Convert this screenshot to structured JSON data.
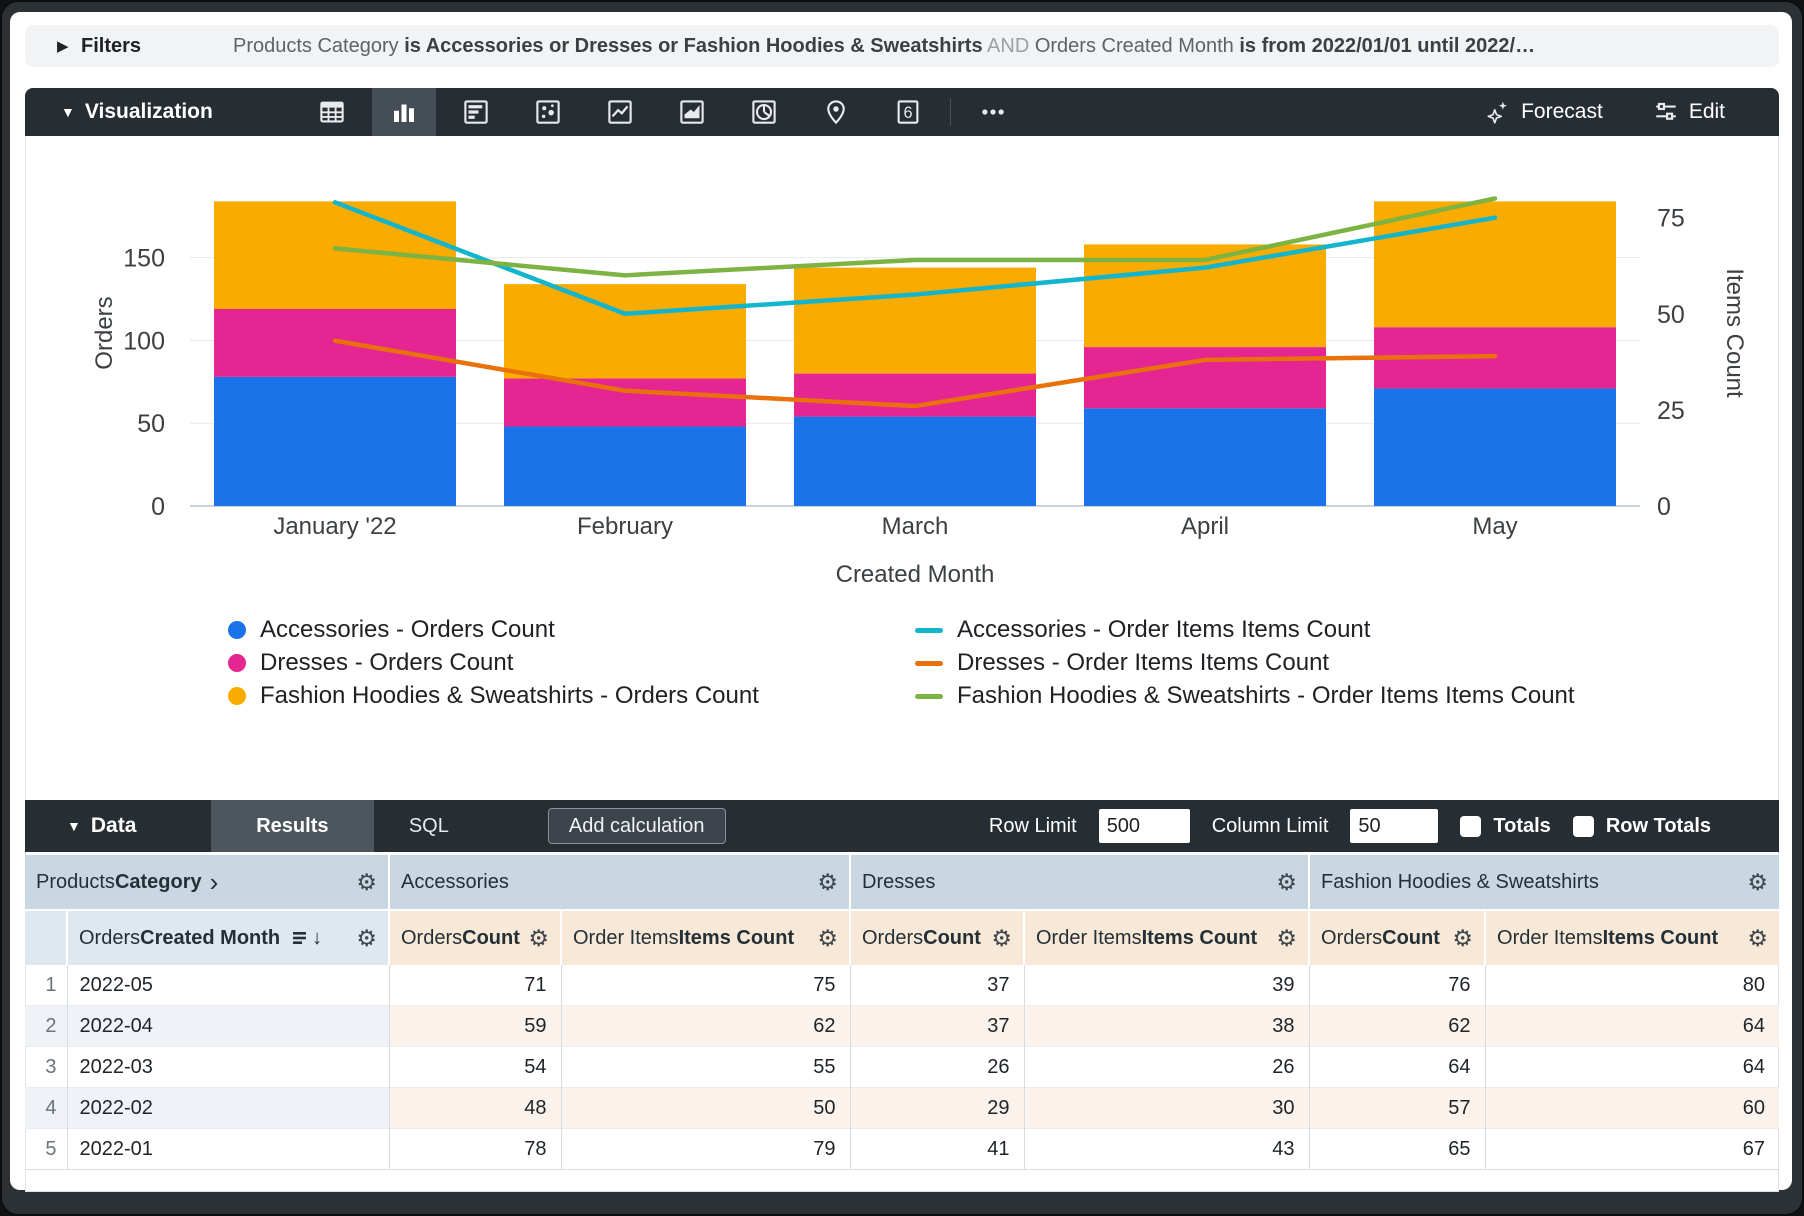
{
  "filters": {
    "label": "Filters",
    "summary": [
      {
        "text": "Products Category "
      },
      {
        "text": "is Accessories or Dresses or Fashion Hoodies & Sweatshirts"
      },
      {
        "text": " AND "
      },
      {
        "text": "Orders Created Month "
      },
      {
        "text": "is from 2022/01/01 until 2022/…"
      }
    ]
  },
  "viz": {
    "title": "Visualization",
    "icons": [
      "table",
      "column",
      "bar",
      "scatter",
      "line",
      "area",
      "pie",
      "map",
      "single-value",
      "more"
    ],
    "selected_icon": "column",
    "single_value_glyph": "6",
    "forecast_label": "Forecast",
    "edit_label": "Edit"
  },
  "chart_data": {
    "type": "combo",
    "stacked_bars": true,
    "categories": [
      "January '22",
      "February",
      "March",
      "April",
      "May"
    ],
    "xlabel": "Created Month",
    "bar_series": [
      {
        "name": "Accessories - Orders Count",
        "axis": "left",
        "color": "#1A73E8",
        "values": [
          78,
          48,
          54,
          59,
          71
        ]
      },
      {
        "name": "Dresses - Orders Count",
        "axis": "left",
        "color": "#E52592",
        "values": [
          41,
          29,
          26,
          37,
          37
        ]
      },
      {
        "name": "Fashion Hoodies & Sweatshirts - Orders Count",
        "axis": "left",
        "color": "#F9AB00",
        "values": [
          65,
          57,
          64,
          62,
          76
        ]
      }
    ],
    "line_series": [
      {
        "name": "Accessories - Order Items Items Count",
        "axis": "right",
        "color": "#12B5CB",
        "values": [
          79,
          50,
          55,
          62,
          75
        ]
      },
      {
        "name": "Dresses - Order Items Items Count",
        "axis": "right",
        "color": "#E8710A",
        "values": [
          43,
          30,
          26,
          38,
          39
        ]
      },
      {
        "name": "Fashion Hoodies & Sweatshirts - Order Items Items Count",
        "axis": "right",
        "color": "#7CB342",
        "values": [
          67,
          60,
          64,
          64,
          80
        ]
      }
    ],
    "left_axis": {
      "title": "Orders",
      "ticks": [
        0,
        50,
        100,
        150
      ],
      "max": 209
    },
    "right_axis": {
      "title": "Items Count",
      "ticks": [
        0,
        25,
        50,
        75
      ],
      "max": 90
    },
    "grid": "horizontal",
    "legend_position": "bottom"
  },
  "data_bar": {
    "title": "Data",
    "results_tab": "Results",
    "sql_tab": "SQL",
    "add_calculation": "Add calculation",
    "row_limit_label": "Row Limit",
    "row_limit_value": "500",
    "column_limit_label": "Column Limit",
    "column_limit_value": "50",
    "totals_label": "Totals",
    "row_totals_label": "Row Totals"
  },
  "table": {
    "dimension_group": {
      "pre": "Products ",
      "bold": "Category"
    },
    "dimension_col": {
      "pre": "Orders ",
      "bold": "Created Month"
    },
    "groups": [
      {
        "label": "Accessories"
      },
      {
        "label": "Dresses"
      },
      {
        "label": "Fashion Hoodies & Sweatshirts"
      }
    ],
    "measure_cols": {
      "orders_pre": "Orders ",
      "orders_bold": "Count",
      "items_pre": "Order Items ",
      "items_bold": "Items Count"
    },
    "rows": [
      {
        "n": "1",
        "month": "2022-05",
        "values": [
          71,
          75,
          37,
          39,
          76,
          80
        ]
      },
      {
        "n": "2",
        "month": "2022-04",
        "values": [
          59,
          62,
          37,
          38,
          62,
          64
        ]
      },
      {
        "n": "3",
        "month": "2022-03",
        "values": [
          54,
          55,
          26,
          26,
          64,
          64
        ]
      },
      {
        "n": "4",
        "month": "2022-02",
        "values": [
          48,
          50,
          29,
          30,
          57,
          60
        ]
      },
      {
        "n": "5",
        "month": "2022-01",
        "values": [
          78,
          79,
          41,
          43,
          65,
          67
        ]
      }
    ]
  }
}
